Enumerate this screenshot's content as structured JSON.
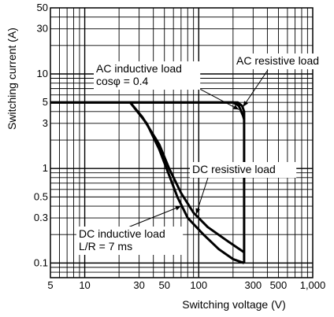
{
  "chart_data": {
    "type": "line",
    "x_scale": "log",
    "y_scale": "log",
    "xlim": [
      5,
      1000
    ],
    "ylim": [
      0.07,
      50
    ],
    "grid": true,
    "xlabel": "Switching voltage (V)",
    "ylabel": "Switching current (A)",
    "x_tick_labels": [
      {
        "value": 5,
        "label": "5"
      },
      {
        "value": 10,
        "label": "10"
      },
      {
        "value": 30,
        "label": "30"
      },
      {
        "value": 50,
        "label": "50"
      },
      {
        "value": 100,
        "label": "100"
      },
      {
        "value": 300,
        "label": "300"
      },
      {
        "value": 500,
        "label": "500"
      },
      {
        "value": 1000,
        "label": "1,000"
      }
    ],
    "y_tick_labels": [
      {
        "value": 0.1,
        "label": "0.1"
      },
      {
        "value": 0.3,
        "label": "0.3"
      },
      {
        "value": 0.5,
        "label": "0.5"
      },
      {
        "value": 1,
        "label": "1"
      },
      {
        "value": 3,
        "label": "3"
      },
      {
        "value": 5,
        "label": "5"
      },
      {
        "value": 10,
        "label": "10"
      },
      {
        "value": 30,
        "label": "30"
      },
      {
        "value": 50,
        "label": "50"
      }
    ],
    "series": [
      {
        "key": "ac_resistive",
        "points": [
          [
            5,
            5
          ],
          [
            220,
            5
          ],
          [
            240,
            4.6
          ],
          [
            250,
            4
          ],
          [
            250,
            0.1
          ]
        ]
      },
      {
        "key": "ac_inductive",
        "points": [
          [
            5,
            5
          ],
          [
            200,
            5
          ],
          [
            225,
            4.6
          ],
          [
            245,
            3.6
          ],
          [
            250,
            3.3
          ]
        ]
      },
      {
        "key": "dc_resistive",
        "points": [
          [
            25,
            5
          ],
          [
            32,
            3.5
          ],
          [
            45,
            1.8
          ],
          [
            55,
            1.0
          ],
          [
            70,
            0.55
          ],
          [
            90,
            0.34
          ],
          [
            120,
            0.24
          ],
          [
            180,
            0.17
          ],
          [
            250,
            0.13
          ]
        ]
      },
      {
        "key": "dc_inductive",
        "points": [
          [
            25,
            5
          ],
          [
            35,
            3.0
          ],
          [
            45,
            1.6
          ],
          [
            55,
            0.85
          ],
          [
            65,
            0.5
          ],
          [
            80,
            0.3
          ],
          [
            110,
            0.2
          ],
          [
            150,
            0.14
          ],
          [
            200,
            0.11
          ],
          [
            250,
            0.1
          ]
        ]
      }
    ],
    "annotations": [
      {
        "key": "ac_inductive",
        "lines": [
          "AC inductive load",
          "cosφ = 0.4"
        ],
        "arrow_to": [
          225,
          4.2
        ]
      },
      {
        "key": "ac_resistive",
        "lines": [
          "AC resistive load"
        ],
        "arrow_to": [
          245,
          4.5
        ]
      },
      {
        "key": "dc_resistive",
        "lines": [
          "DC resistive load"
        ],
        "arrow_to": [
          95,
          0.33
        ]
      },
      {
        "key": "dc_inductive",
        "lines": [
          "DC inductive load",
          "L/R = 7 ms"
        ],
        "arrow_to": [
          70,
          0.4
        ]
      }
    ]
  }
}
